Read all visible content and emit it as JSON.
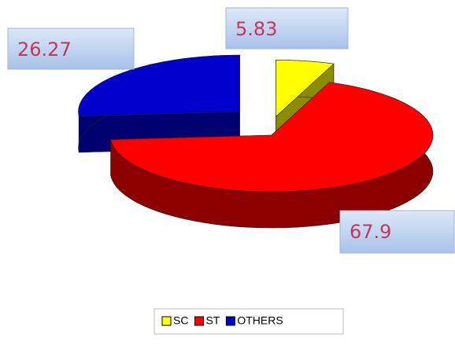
{
  "chart_data": {
    "type": "pie3d",
    "categories": [
      "SC",
      "ST",
      "OTHERS"
    ],
    "values": [
      5.83,
      67.9,
      26.27
    ],
    "colors": [
      "#ffff00",
      "#ff0000",
      "#0000cc"
    ],
    "legend": "bottom"
  }
}
